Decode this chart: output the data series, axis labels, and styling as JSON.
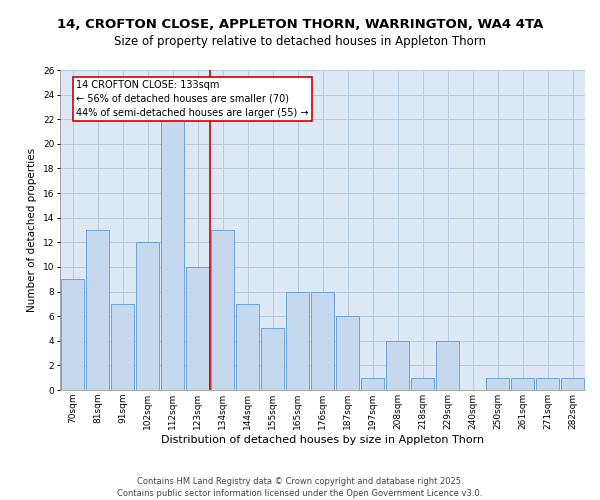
{
  "title1": "14, CROFTON CLOSE, APPLETON THORN, WARRINGTON, WA4 4TA",
  "title2": "Size of property relative to detached houses in Appleton Thorn",
  "xlabel": "Distribution of detached houses by size in Appleton Thorn",
  "ylabel": "Number of detached properties",
  "categories": [
    "70sqm",
    "81sqm",
    "91sqm",
    "102sqm",
    "112sqm",
    "123sqm",
    "134sqm",
    "144sqm",
    "155sqm",
    "165sqm",
    "176sqm",
    "187sqm",
    "197sqm",
    "208sqm",
    "218sqm",
    "229sqm",
    "240sqm",
    "250sqm",
    "261sqm",
    "271sqm",
    "282sqm"
  ],
  "values": [
    9,
    13,
    7,
    12,
    22,
    10,
    13,
    7,
    5,
    8,
    8,
    6,
    1,
    4,
    1,
    4,
    0,
    1,
    1,
    1,
    1
  ],
  "bar_color": "#c5d8ed",
  "bar_edge_color": "#5b9bd5",
  "grid_color": "#c5d8ed",
  "background_color": "#dce9f5",
  "vline_x": 5.5,
  "vline_color": "#cc0000",
  "annotation_text": "14 CROFTON CLOSE: 133sqm\n← 56% of detached houses are smaller (70)\n44% of semi-detached houses are larger (55) →",
  "annotation_box_color": "#ffffff",
  "annotation_box_edge_color": "#cc0000",
  "ylim": [
    0,
    26
  ],
  "yticks": [
    0,
    2,
    4,
    6,
    8,
    10,
    12,
    14,
    16,
    18,
    20,
    22,
    24,
    26
  ],
  "footer": "Contains HM Land Registry data © Crown copyright and database right 2025.\nContains public sector information licensed under the Open Government Licence v3.0.",
  "title1_fontsize": 9.5,
  "title2_fontsize": 8.5,
  "xlabel_fontsize": 8,
  "ylabel_fontsize": 7.5,
  "tick_fontsize": 6.5,
  "annotation_fontsize": 7,
  "footer_fontsize": 6
}
